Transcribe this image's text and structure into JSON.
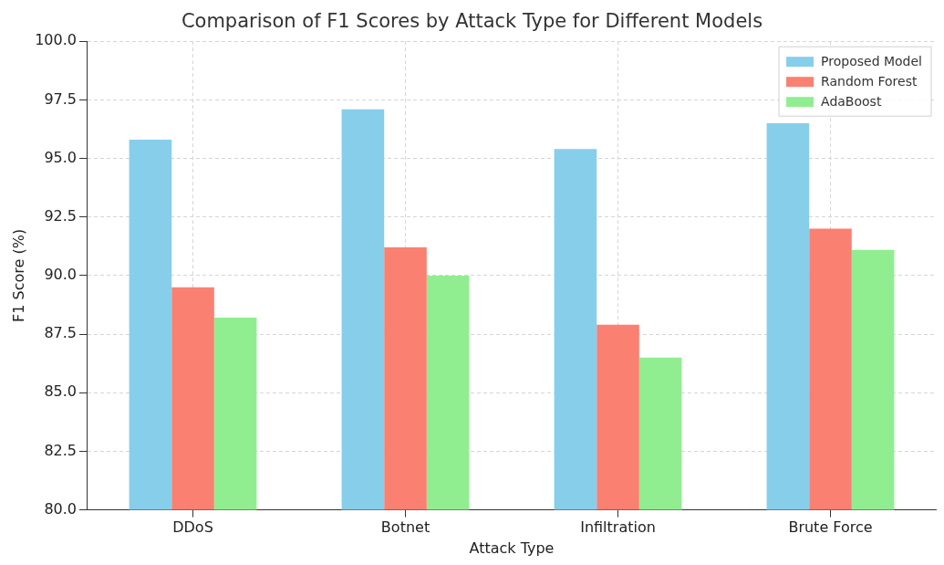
{
  "chart_data": {
    "type": "bar",
    "title": "Comparison of F1 Scores by Attack Type for Different Models",
    "xlabel": "Attack Type",
    "ylabel": "F1 Score (%)",
    "categories": [
      "DDoS",
      "Botnet",
      "Infiltration",
      "Brute Force"
    ],
    "series": [
      {
        "name": "Proposed Model",
        "color": "#87ceeb",
        "values": [
          95.8,
          97.1,
          95.4,
          96.5
        ]
      },
      {
        "name": "Random Forest",
        "color": "#fa8072",
        "values": [
          89.5,
          91.2,
          87.9,
          92.0
        ]
      },
      {
        "name": "AdaBoost",
        "color": "#90ee90",
        "values": [
          88.2,
          90.0,
          86.5,
          91.1
        ]
      }
    ],
    "ylim": [
      80,
      100
    ],
    "yticks": [
      {
        "value": 80,
        "label": "80.0"
      },
      {
        "value": 82.5,
        "label": "82.5"
      },
      {
        "value": 85,
        "label": "85.0"
      },
      {
        "value": 87.5,
        "label": "87.5"
      },
      {
        "value": 90,
        "label": "90.0"
      },
      {
        "value": 92.5,
        "label": "92.5"
      },
      {
        "value": 95,
        "label": "95.0"
      },
      {
        "value": 97.5,
        "label": "97.5"
      },
      {
        "value": 100,
        "label": "100.0"
      }
    ],
    "grid": true,
    "legend": "top right"
  }
}
